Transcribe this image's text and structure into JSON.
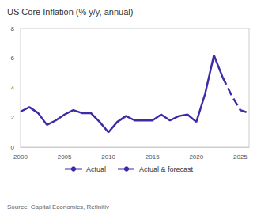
{
  "chart_data": {
    "type": "line",
    "title": "US Core Inflation (% y/y, annual)",
    "source": "Source: Capital Economics, Refinitiv",
    "xlim": [
      2000,
      2026
    ],
    "xticks": [
      2000,
      2005,
      2010,
      2015,
      2020,
      2025
    ],
    "ylim": [
      0,
      8
    ],
    "yticks": [
      0,
      2,
      4,
      6,
      8
    ],
    "grid": false,
    "legend": "bottom",
    "series": [
      {
        "name": "Actual",
        "color": "#3d2ca8",
        "line_style": "solid",
        "x": [
          2000,
          2001,
          2002,
          2003,
          2004,
          2005,
          2006,
          2007,
          2008,
          2009,
          2010,
          2011,
          2012,
          2013,
          2014,
          2015,
          2016,
          2017,
          2018,
          2019,
          2020,
          2021,
          2022,
          2023
        ],
        "values": [
          2.4,
          2.7,
          2.3,
          1.5,
          1.8,
          2.2,
          2.5,
          2.3,
          2.3,
          1.7,
          1.0,
          1.7,
          2.1,
          1.8,
          1.8,
          1.8,
          2.2,
          1.8,
          2.1,
          2.2,
          1.7,
          3.6,
          6.2,
          4.7
        ]
      },
      {
        "name": "Actual & forecast",
        "color": "#3d2ca8",
        "line_style": "dashed",
        "x": [
          2023,
          2024,
          2025,
          2026
        ],
        "values": [
          4.7,
          3.5,
          2.5,
          2.3
        ]
      }
    ]
  }
}
